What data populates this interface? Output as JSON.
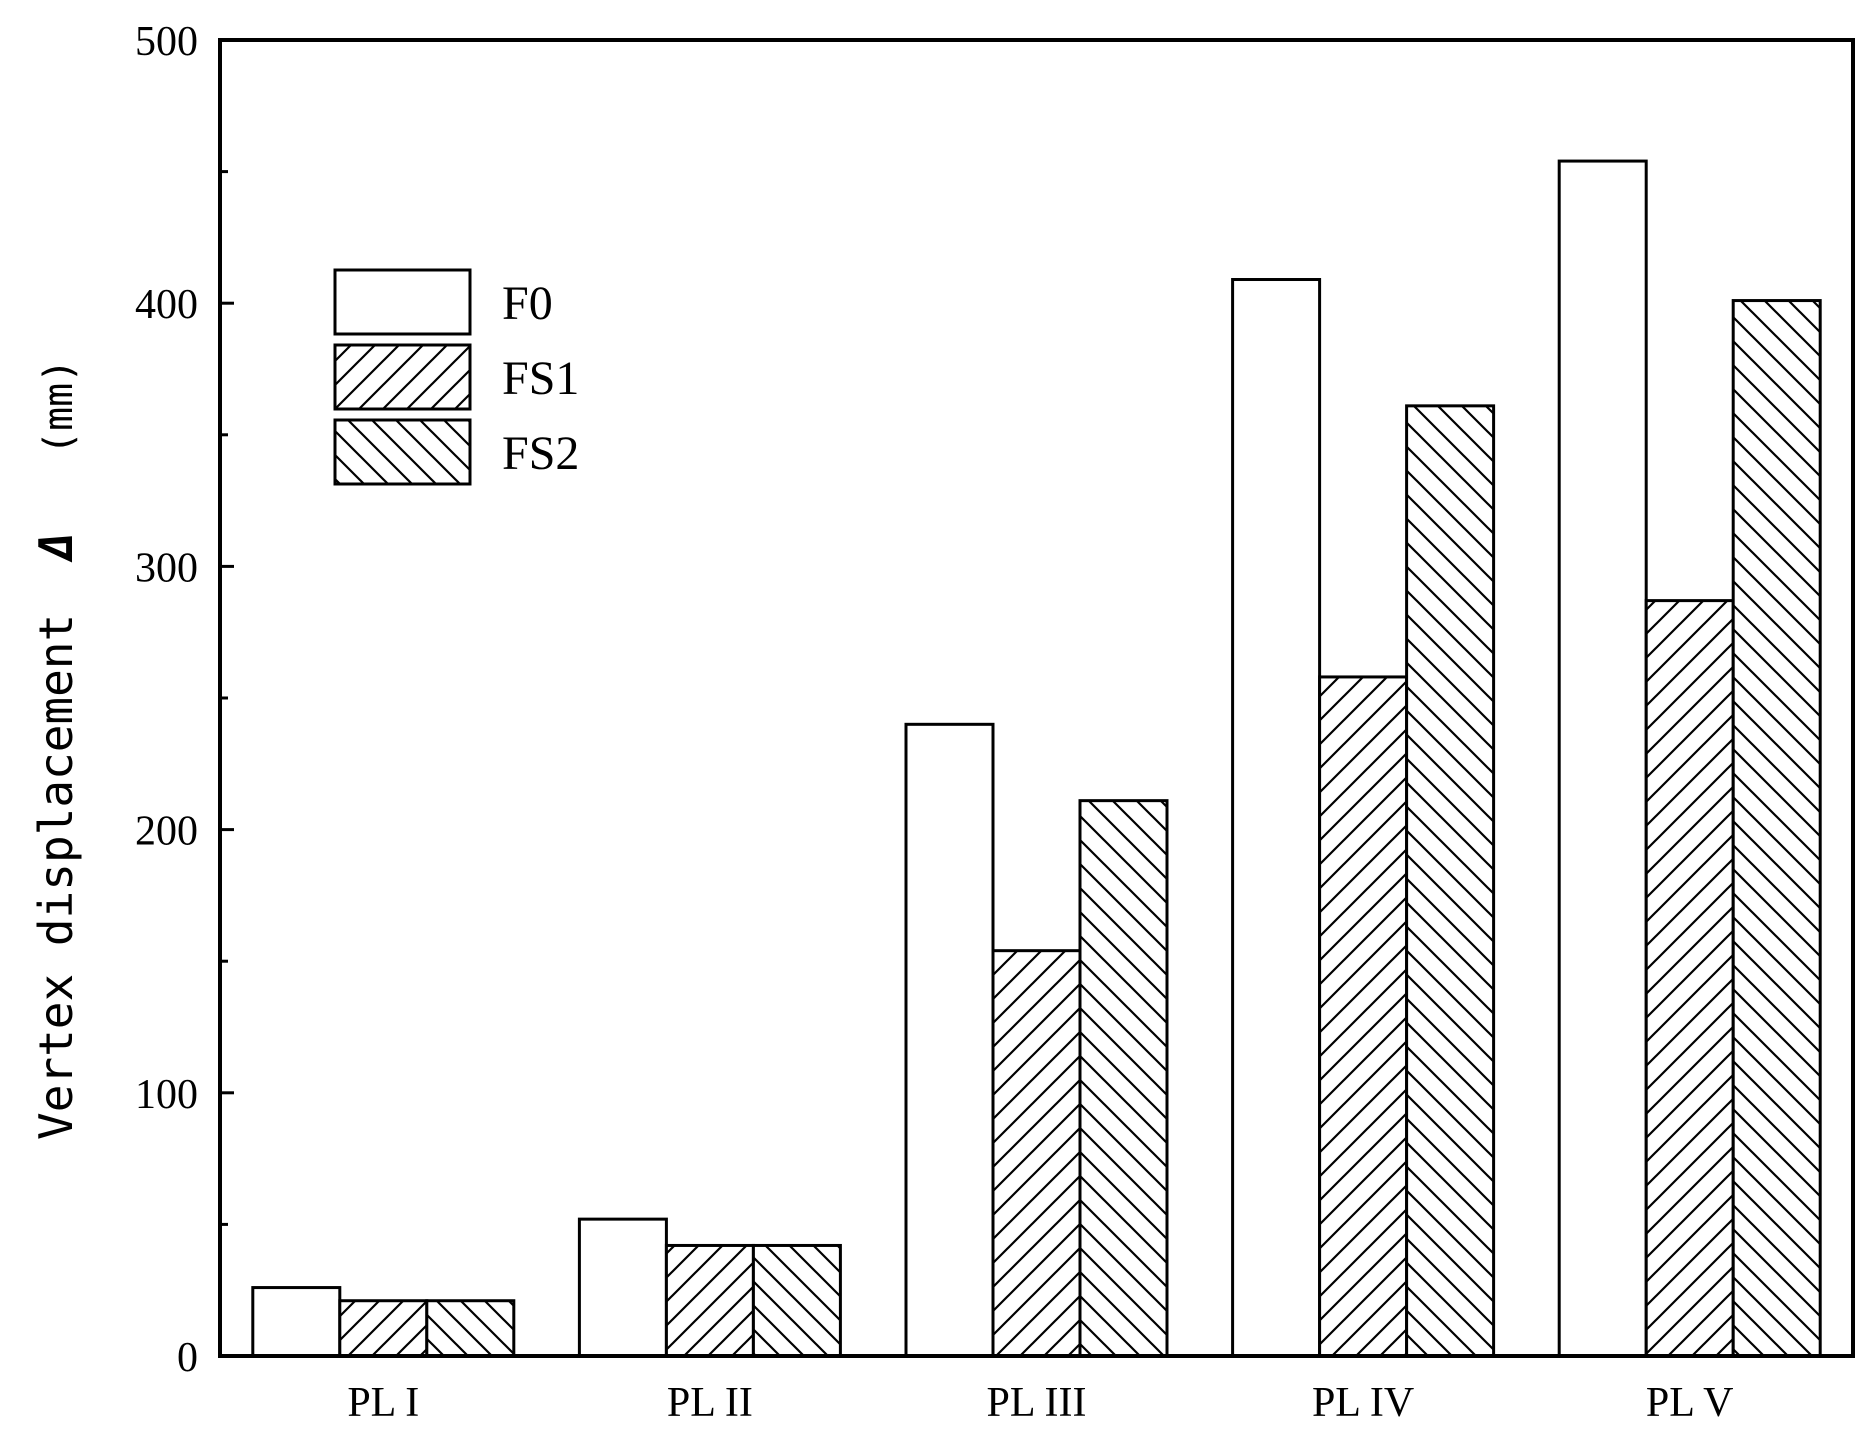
{
  "chart_data": {
    "type": "bar",
    "title": "",
    "xlabel": "",
    "ylabel": "Vertex displacement",
    "ylabel_symbol": "Δ",
    "ylabel_unit": "(mm)",
    "ylim": [
      0,
      500
    ],
    "yticks": [
      0,
      100,
      200,
      300,
      400,
      500
    ],
    "ytick_labels": [
      "0",
      "100",
      "200",
      "300",
      "400",
      "500"
    ],
    "minor_yticks": [
      50,
      150,
      250,
      350,
      450
    ],
    "categories": [
      "PL I",
      "PL II",
      "PL III",
      "PL IV",
      "PL V"
    ],
    "series": [
      {
        "name": "F0",
        "pattern": "none",
        "values": [
          26,
          52,
          240,
          409,
          454
        ]
      },
      {
        "name": "FS1",
        "pattern": "forward-hatch",
        "values": [
          21,
          42,
          154,
          258,
          287
        ]
      },
      {
        "name": "FS2",
        "pattern": "back-hatch",
        "values": [
          21,
          42,
          211,
          361,
          401
        ]
      }
    ],
    "legend": {
      "position": "upper-left",
      "entries": [
        "F0",
        "FS1",
        "FS2"
      ]
    },
    "grid": false,
    "colors": {
      "fill": "#ffffff",
      "stroke": "#000000"
    }
  }
}
